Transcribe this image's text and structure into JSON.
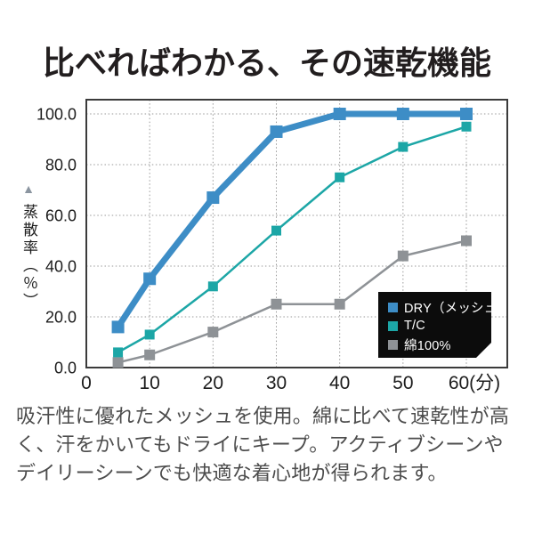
{
  "page": {
    "background": "#ffffff"
  },
  "title": "比べればわかる、その速乾機能",
  "chart_data": {
    "type": "line",
    "title": "比べればわかる、その速乾機能",
    "ylabel": "蒸散率（％）",
    "ylabel_arrow": "▲",
    "x": [
      5,
      10,
      20,
      30,
      40,
      50,
      60
    ],
    "x_ticks": [
      0,
      10,
      20,
      30,
      40,
      50,
      60
    ],
    "x_tick_labels": [
      "0",
      "10",
      "20",
      "30",
      "40",
      "50",
      "60(分)"
    ],
    "y_ticks": [
      0,
      20,
      40,
      60,
      80,
      100
    ],
    "y_tick_labels": [
      "0.0",
      "20.0",
      "40.0",
      "60.0",
      "80.0",
      "100.0"
    ],
    "xlim": [
      0,
      66
    ],
    "ylim": [
      0,
      106
    ],
    "grid": "dotted",
    "legend_position": "inside-bottom-right",
    "series": [
      {
        "name": "DRY（メッシュ）",
        "color": "#3d8dc6",
        "values": [
          16,
          35,
          67,
          93,
          100,
          100,
          100
        ]
      },
      {
        "name": "T/C",
        "color": "#1ca6a6",
        "values": [
          6,
          13,
          32,
          54,
          75,
          87,
          95
        ]
      },
      {
        "name": "綿100%",
        "color": "#8e9296",
        "values": [
          2,
          5,
          14,
          25,
          25,
          44,
          50
        ]
      }
    ]
  },
  "legend": {
    "box_color": "#0c0c0c",
    "text_color": "#ffffff"
  },
  "description": "吸汗性に優れたメッシュを使用。綿に比べて速乾性が高く、汗をかいてもドライにキープ。アクティブシーンやデイリーシーンでも快適な着心地が得られます。"
}
